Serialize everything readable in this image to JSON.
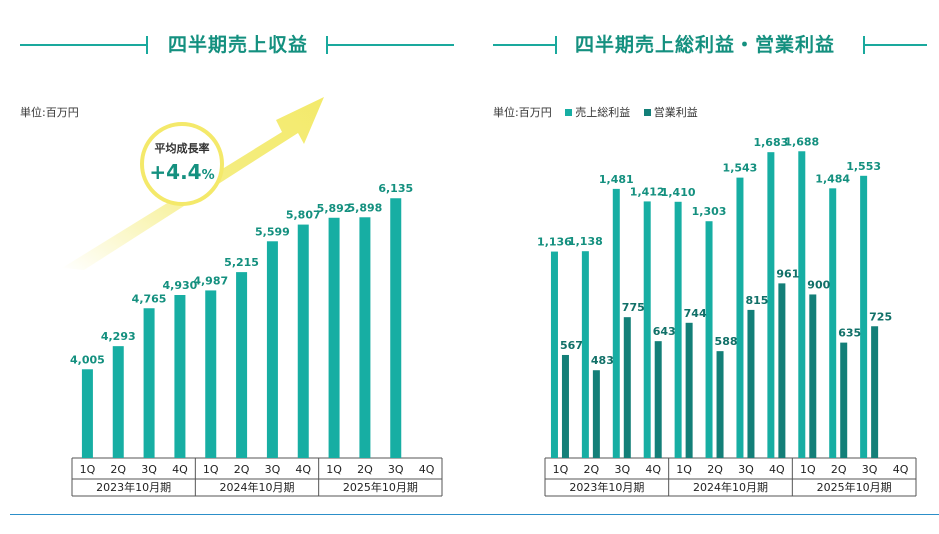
{
  "left_title": "四半期売上収益",
  "right_title": "四半期売上総利益・営業利益",
  "left_unit": "単位:百万円",
  "right_unit": "単位:百万円",
  "growth": {
    "label": "平均成長率",
    "value": "+4.4",
    "suffix": "%"
  },
  "colors": {
    "teal": "#17aea3",
    "dark_teal": "#137f78",
    "arrow": "#f3ea6b",
    "rule": "#2c8fc9"
  },
  "chart_data": [
    {
      "type": "bar",
      "title": "四半期売上収益",
      "unit": "百万円",
      "categories": [
        "1Q",
        "2Q",
        "3Q",
        "4Q",
        "1Q",
        "2Q",
        "3Q",
        "4Q",
        "1Q",
        "2Q",
        "3Q",
        "4Q"
      ],
      "groups": [
        "2023年10月期",
        "2024年10月期",
        "2025年10月期"
      ],
      "series": [
        {
          "values": [
            4005,
            4293,
            4765,
            4930,
            4987,
            5215,
            5599,
            5807,
            5892,
            5898,
            6135,
            null
          ]
        }
      ],
      "labels": [
        "4,005",
        "4,293",
        "4,765",
        "4,930",
        "4,987",
        "5,215",
        "5,599",
        "5,807",
        "5,892",
        "5,898",
        "6,135",
        ""
      ],
      "ylim": [
        2900,
        6300
      ]
    },
    {
      "type": "bar",
      "title": "四半期売上総利益・営業利益",
      "unit": "百万円",
      "categories": [
        "1Q",
        "2Q",
        "3Q",
        "4Q",
        "1Q",
        "2Q",
        "3Q",
        "4Q",
        "1Q",
        "2Q",
        "3Q",
        "4Q"
      ],
      "groups": [
        "2023年10月期",
        "2024年10月期",
        "2025年10月期"
      ],
      "series": [
        {
          "name": "売上総利益",
          "values": [
            1136,
            1138,
            1481,
            1412,
            1410,
            1303,
            1543,
            1683,
            1688,
            1484,
            1553,
            null
          ],
          "labels": [
            "1,136",
            "1,138",
            "1,481",
            "1,412",
            "1,410",
            "1,303",
            "1,543",
            "1,683",
            "1,688",
            "1,484",
            "1,553",
            ""
          ]
        },
        {
          "name": "営業利益",
          "values": [
            567,
            483,
            775,
            643,
            744,
            588,
            815,
            961,
            900,
            635,
            725,
            null
          ],
          "labels": [
            "567",
            "483",
            "775",
            "643",
            "744",
            "588",
            "815",
            "961",
            "900",
            "635",
            "725",
            ""
          ]
        }
      ],
      "ylim": [
        0,
        1750
      ]
    }
  ]
}
